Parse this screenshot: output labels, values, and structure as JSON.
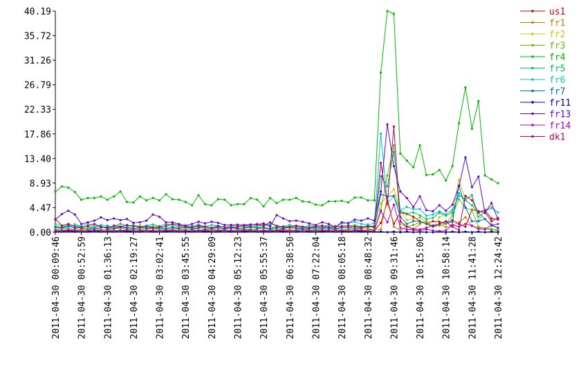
{
  "chart_data": {
    "type": "line",
    "categories": [
      "2011-04-30 00:09:46",
      null,
      null,
      null,
      "2011-04-30 00:52:59",
      null,
      null,
      null,
      "2011-04-30 01:36:13",
      null,
      null,
      null,
      "2011-04-30 02:19:27",
      null,
      null,
      null,
      "2011-04-30 03:02:41",
      null,
      null,
      null,
      "2011-04-30 03:45:55",
      null,
      null,
      null,
      "2011-04-30 04:29:09",
      null,
      null,
      null,
      "2011-04-30 05:12:23",
      null,
      null,
      null,
      "2011-04-30 05:55:37",
      null,
      null,
      null,
      "2011-04-30 06:38:50",
      null,
      null,
      null,
      "2011-04-30 07:22:04",
      null,
      null,
      null,
      "2011-04-30 08:05:18",
      null,
      null,
      null,
      "2011-04-30 08:48:32",
      null,
      null,
      null,
      "2011-04-30 09:31:46",
      null,
      null,
      null,
      "2011-04-30 10:15:00",
      null,
      null,
      null,
      "2011-04-30 10:58:14",
      null,
      null,
      null,
      "2011-04-30 11:41:28",
      null,
      null,
      null,
      "2011-04-30 12:24:42"
    ],
    "ylim": [
      0,
      40.19
    ],
    "yticks": [
      {
        "value": 0,
        "label": "0.00"
      },
      4.47,
      8.93,
      {
        "value": 13.4,
        "label": "13.40"
      },
      17.86,
      22.33,
      26.79,
      31.26,
      35.72,
      40.19
    ],
    "legend": "right",
    "series": [
      {
        "name": "us1",
        "color": "#cc0000",
        "values": [
          0.3,
          0.2,
          0.3,
          0.2,
          0.3,
          0.2,
          0.2,
          0.3,
          0.2,
          0.2,
          0.3,
          0.2,
          0.2,
          0.3,
          0.2,
          0.2,
          0.3,
          0.2,
          0.2,
          0.3,
          0.2,
          0.2,
          0.3,
          0.2,
          0.2,
          0.3,
          0.2,
          0.2,
          0.3,
          0.2,
          0.2,
          0.3,
          0.2,
          0.2,
          0.3,
          0.2,
          0.2,
          0.3,
          0.2,
          0.2,
          0.3,
          0.2,
          0.2,
          0.3,
          0.2,
          0.2,
          0.3,
          0.2,
          0.2,
          0.3,
          1.7,
          5.5,
          1.5,
          3.6,
          3.3,
          2.8,
          2.0,
          1.5,
          2.0,
          1.9,
          1.5,
          2.2,
          1.5,
          1.0,
          4.1,
          3.8,
          3.6,
          2.0,
          2.6
        ]
      },
      {
        "name": "fr1",
        "color": "#cc7a00",
        "values": [
          0.6,
          0.5,
          0.8,
          0.4,
          0.6,
          0.5,
          0.7,
          0.4,
          0.5,
          0.6,
          0.8,
          0.5,
          0.4,
          0.6,
          0.5,
          0.7,
          0.6,
          0.4,
          0.5,
          0.6,
          0.5,
          0.4,
          0.7,
          0.5,
          0.6,
          0.4,
          0.5,
          0.8,
          0.6,
          0.5,
          0.4,
          0.6,
          0.7,
          0.5,
          0.4,
          0.6,
          0.5,
          0.7,
          0.4,
          0.6,
          0.5,
          0.6,
          0.8,
          0.5,
          0.4,
          0.6,
          0.5,
          0.7,
          0.6,
          0.5,
          0.5,
          6.3,
          1.0,
          0.3,
          1.0,
          0.5,
          1.5,
          2.0,
          1.0,
          1.5,
          0.9,
          1.3,
          1.8,
          2.7,
          1.1,
          0.8,
          0.7,
          0.4,
          0.5
        ]
      },
      {
        "name": "fr2",
        "color": "#c8c800",
        "values": [
          1.2,
          0.9,
          1.4,
          1.0,
          1.1,
          0.8,
          1.3,
          1.0,
          0.9,
          1.2,
          1.6,
          1.1,
          1.0,
          1.3,
          0.9,
          1.2,
          1.0,
          1.1,
          1.4,
          0.9,
          1.0,
          1.2,
          0.8,
          1.1,
          1.3,
          1.0,
          0.9,
          1.2,
          1.1,
          1.0,
          0.8,
          1.2,
          1.4,
          1.0,
          0.9,
          1.1,
          1.2,
          1.0,
          0.8,
          1.3,
          1.1,
          1.0,
          0.9,
          1.2,
          1.0,
          1.1,
          1.3,
          1.0,
          1.2,
          1.1,
          5.2,
          6.5,
          7.8,
          3.8,
          2.2,
          2.4,
          2.6,
          1.7,
          1.0,
          2.7,
          3.3,
          3.8,
          9.5,
          5.9,
          6.5,
          2.0,
          4.1,
          4.5,
          3.6
        ]
      },
      {
        "name": "fr3",
        "color": "#66b800",
        "values": [
          0.4,
          0.3,
          0.5,
          0.3,
          0.4,
          0.6,
          0.3,
          0.4,
          0.5,
          0.3,
          0.4,
          0.3,
          0.5,
          0.4,
          0.3,
          0.4,
          0.6,
          0.3,
          0.4,
          0.3,
          0.5,
          0.4,
          0.3,
          0.4,
          0.5,
          0.3,
          0.4,
          0.3,
          0.5,
          0.4,
          0.6,
          0.3,
          0.4,
          0.3,
          0.5,
          0.4,
          0.3,
          0.4,
          0.5,
          0.3,
          0.4,
          0.3,
          0.5,
          0.4,
          0.3,
          0.4,
          0.6,
          0.3,
          0.4,
          0.5,
          4.1,
          10.3,
          15.8,
          1.5,
          1.0,
          1.3,
          1.8,
          1.6,
          1.0,
          1.2,
          1.5,
          3.0,
          6.0,
          4.4,
          4.0,
          1.0,
          0.7,
          0.6,
          0.2
        ]
      },
      {
        "name": "fr4",
        "color": "#00b800",
        "values": [
          7.4,
          8.3,
          8.1,
          7.3,
          5.9,
          6.2,
          6.2,
          6.5,
          5.9,
          6.5,
          7.4,
          5.5,
          5.4,
          6.5,
          5.8,
          6.2,
          5.8,
          6.9,
          6.0,
          5.9,
          5.5,
          4.9,
          6.7,
          5.1,
          4.9,
          6.0,
          5.9,
          4.9,
          5.1,
          5.1,
          6.2,
          5.9,
          4.7,
          6.2,
          5.3,
          5.9,
          5.9,
          6.2,
          5.6,
          5.5,
          5.0,
          4.9,
          5.6,
          5.6,
          5.7,
          5.4,
          6.3,
          6.3,
          5.8,
          5.8,
          29.0,
          40.19,
          39.7,
          14.3,
          13.0,
          11.8,
          15.8,
          10.4,
          10.5,
          11.3,
          9.4,
          12.0,
          19.8,
          26.3,
          18.8,
          23.8,
          10.3,
          9.6,
          8.9
        ]
      },
      {
        "name": "fr5",
        "color": "#00c060",
        "values": [
          0.9,
          0.7,
          1.0,
          1.4,
          0.8,
          0.6,
          0.9,
          1.1,
          0.7,
          0.8,
          1.0,
          0.9,
          0.7,
          0.8,
          1.2,
          0.9,
          0.6,
          0.8,
          1.0,
          0.7,
          0.9,
          0.8,
          1.1,
          0.7,
          0.8,
          0.9,
          0.6,
          1.0,
          0.8,
          0.7,
          0.9,
          1.0,
          0.8,
          0.7,
          0.9,
          0.8,
          1.1,
          0.7,
          0.8,
          0.9,
          0.6,
          0.8,
          1.0,
          0.7,
          0.9,
          0.8,
          1.2,
          1.0,
          0.9,
          1.1,
          10.2,
          8.3,
          14.6,
          3.8,
          3.4,
          3.6,
          3.0,
          2.4,
          2.6,
          3.5,
          3.0,
          3.5,
          7.1,
          5.8,
          4.9,
          3.5,
          2.4,
          1.4,
          0.8
        ]
      },
      {
        "name": "fr6",
        "color": "#00c8c8",
        "values": [
          1.5,
          1.2,
          0.9,
          1.4,
          1.1,
          1.6,
          1.0,
          1.3,
          1.2,
          0.9,
          1.5,
          1.1,
          1.3,
          1.0,
          1.2,
          1.4,
          1.1,
          1.5,
          1.3,
          1.0,
          1.2,
          1.1,
          1.4,
          1.0,
          1.3,
          1.2,
          0.9,
          1.1,
          1.4,
          1.2,
          1.0,
          1.3,
          1.1,
          1.5,
          1.2,
          1.0,
          1.3,
          1.1,
          0.9,
          1.2,
          1.0,
          1.1,
          1.3,
          1.0,
          1.6,
          1.7,
          1.9,
          1.5,
          1.4,
          1.6,
          17.9,
          5.3,
          6.5,
          4.0,
          4.6,
          4.2,
          4.2,
          3.0,
          3.2,
          3.8,
          3.2,
          4.1,
          6.6,
          6.1,
          6.8,
          2.8,
          3.8,
          4.4,
          3.6
        ]
      },
      {
        "name": "fr7",
        "color": "#0064c8",
        "values": [
          1.0,
          0.8,
          1.2,
          0.7,
          0.9,
          1.1,
          0.6,
          0.8,
          1.0,
          0.7,
          0.9,
          0.8,
          0.6,
          0.9,
          0.7,
          0.8,
          1.0,
          0.6,
          0.8,
          0.7,
          0.9,
          0.6,
          0.8,
          1.0,
          0.7,
          0.8,
          0.6,
          0.9,
          0.7,
          0.8,
          1.0,
          0.7,
          0.9,
          0.6,
          0.8,
          0.7,
          0.9,
          0.8,
          0.6,
          0.7,
          0.9,
          0.8,
          0.7,
          0.6,
          0.8,
          0.9,
          0.7,
          0.8,
          1.0,
          0.9,
          6.9,
          6.5,
          6.6,
          2.8,
          1.5,
          2.0,
          2.0,
          1.5,
          1.0,
          1.5,
          1.9,
          1.8,
          8.5,
          4.5,
          2.0,
          2.0,
          2.4,
          1.2,
          0.8
        ]
      },
      {
        "name": "fr11",
        "color": "#0000a0",
        "values": [
          0.1,
          0.1,
          0.2,
          0.1,
          0.1,
          0.1,
          0.2,
          0.1,
          0.1,
          0.1,
          0.2,
          0.1,
          0.1,
          0.1,
          0.2,
          0.1,
          0.1,
          0.1,
          0.2,
          0.1,
          0.1,
          0.1,
          0.2,
          0.1,
          0.1,
          0.1,
          0.2,
          0.1,
          0.1,
          0.1,
          0.2,
          0.1,
          0.1,
          0.1,
          0.2,
          0.1,
          0.1,
          0.1,
          0.2,
          0.1,
          0.1,
          0.1,
          0.2,
          0.1,
          0.1,
          0.1,
          0.2,
          0.1,
          0.1,
          0.1,
          0.1,
          0.0,
          0.1,
          0.0,
          0.1,
          0.0,
          0.1,
          0.0,
          0.0,
          0.1,
          0.0,
          0.1,
          0.0,
          0.1,
          0.0,
          0.1,
          0.0,
          0.1,
          0.0
        ]
      },
      {
        "name": "fr13",
        "color": "#6400c8",
        "values": [
          2.3,
          3.3,
          3.9,
          3.2,
          1.5,
          1.8,
          2.1,
          2.7,
          2.2,
          2.5,
          2.2,
          2.4,
          1.7,
          1.8,
          2.1,
          3.2,
          2.8,
          1.8,
          1.8,
          1.5,
          1.2,
          1.5,
          1.9,
          1.6,
          1.9,
          1.7,
          1.3,
          1.3,
          1.3,
          1.3,
          1.4,
          1.4,
          1.6,
          1.1,
          3.1,
          2.5,
          2.0,
          2.1,
          1.9,
          1.6,
          1.3,
          1.8,
          1.5,
          0.9,
          1.8,
          1.6,
          2.3,
          2.1,
          2.5,
          2.1,
          7.4,
          19.6,
          12.0,
          7.4,
          6.2,
          4.6,
          6.5,
          4.0,
          3.8,
          4.9,
          3.9,
          5.0,
          8.3,
          13.6,
          8.2,
          10.1,
          3.5,
          5.3,
          2.3
        ]
      },
      {
        "name": "fr14",
        "color": "#b400c8",
        "values": [
          0.3,
          0.2,
          0.4,
          0.3,
          0.2,
          0.3,
          0.4,
          0.2,
          0.3,
          0.2,
          0.3,
          0.4,
          0.2,
          0.3,
          0.2,
          0.3,
          0.2,
          0.4,
          0.3,
          0.2,
          0.3,
          0.2,
          0.3,
          0.4,
          0.2,
          0.3,
          0.2,
          0.3,
          0.2,
          0.4,
          0.3,
          0.2,
          0.3,
          0.2,
          0.3,
          0.4,
          0.2,
          0.3,
          0.2,
          0.3,
          0.2,
          0.4,
          0.3,
          0.2,
          0.3,
          0.2,
          0.3,
          0.4,
          0.2,
          0.3,
          3.8,
          1.8,
          5.0,
          0.8,
          0.5,
          0.4,
          0.3,
          0.5,
          0.3,
          0.2,
          0.3,
          1.3,
          1.0,
          1.5,
          1.2,
          0.6,
          0.5,
          1.3,
          1.5
        ]
      },
      {
        "name": "dk1",
        "color": "#b40064",
        "values": [
          2.4,
          1.2,
          1.5,
          1.0,
          0.8,
          1.2,
          1.5,
          1.0,
          0.7,
          1.2,
          1.0,
          1.3,
          1.1,
          0.9,
          1.0,
          0.8,
          0.9,
          1.2,
          1.5,
          1.3,
          1.0,
          0.9,
          1.2,
          1.0,
          0.8,
          1.1,
          0.9,
          0.7,
          1.0,
          1.2,
          1.3,
          1.5,
          1.2,
          1.8,
          1.1,
          1.0,
          0.9,
          1.2,
          1.0,
          0.8,
          1.1,
          1.2,
          0.9,
          1.0,
          1.1,
          1.2,
          1.0,
          0.9,
          1.1,
          1.0,
          12.6,
          5.2,
          19.2,
          2.0,
          1.0,
          0.6,
          0.5,
          0.8,
          1.2,
          1.5,
          2.0,
          1.0,
          0.4,
          6.6,
          5.8,
          3.6,
          4.0,
          2.5,
          2.3
        ]
      }
    ]
  }
}
